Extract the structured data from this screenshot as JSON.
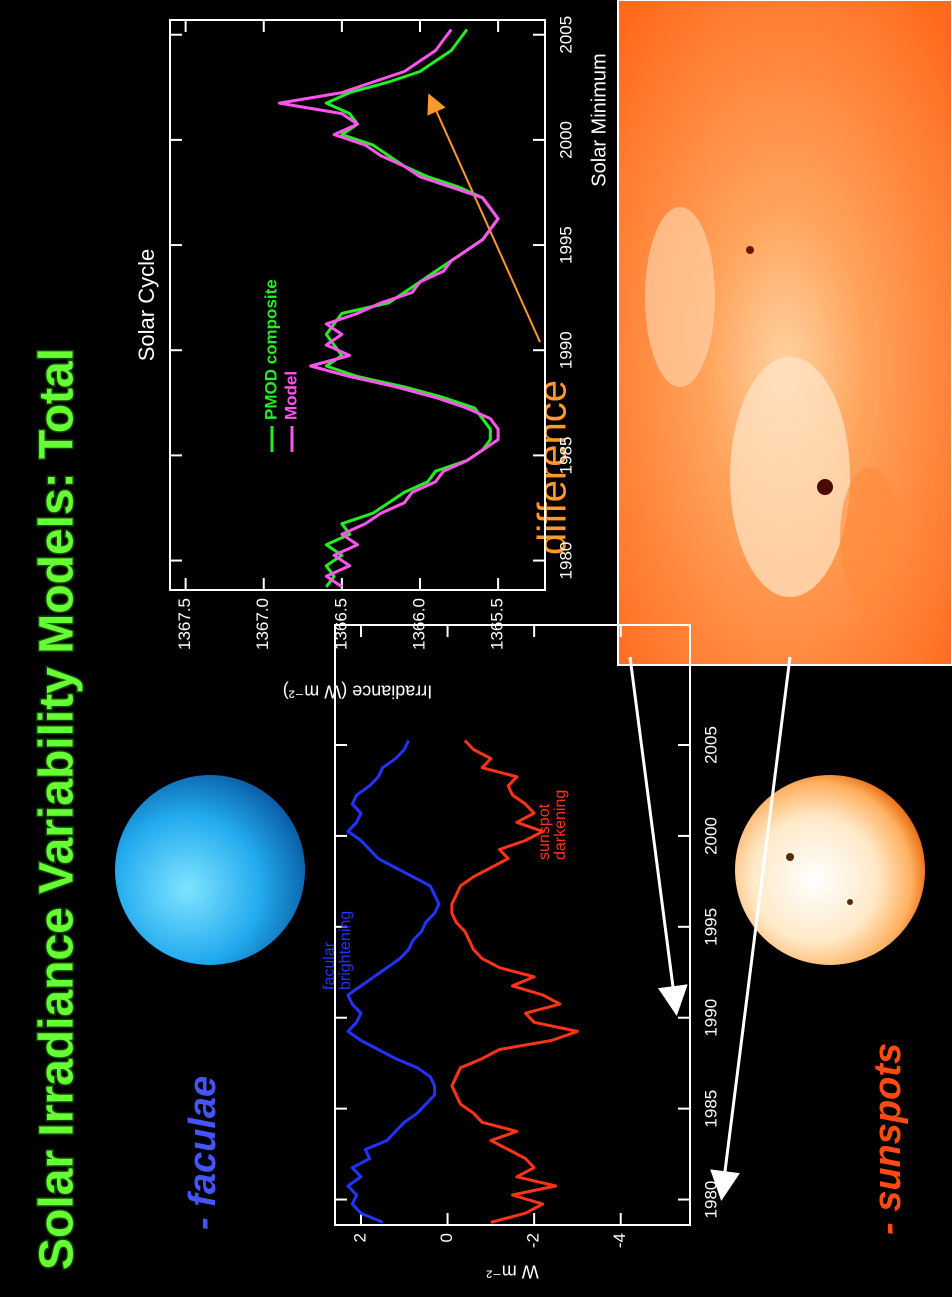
{
  "slide": {
    "title": "Solar Irradiance Variability Models: Total",
    "faculae_label": "- faculae",
    "sunspots_label": "- sunspots",
    "difference_label": "difference",
    "solar_minimum_label": "Solar Minimum"
  },
  "chart_data": [
    {
      "type": "line",
      "y_label": "W m⁻²",
      "x": [
        1978.75,
        1979.25,
        1979.75,
        1980.25,
        1980.75,
        1981.25,
        1981.75,
        1982.25,
        1982.75,
        1983.25,
        1983.75,
        1984.25,
        1984.75,
        1985.25,
        1985.75,
        1986.25,
        1986.75,
        1987.25,
        1987.75,
        1988.25,
        1988.75,
        1989.25,
        1989.75,
        1990.25,
        1990.75,
        1991.25,
        1991.75,
        1992.25,
        1992.75,
        1993.25,
        1993.75,
        1994.25,
        1994.75,
        1995.25,
        1995.75,
        1996.25,
        1996.75,
        1997.25,
        1997.75,
        1998.25,
        1998.75,
        1999.25,
        1999.75,
        2000.25,
        2000.75,
        2001.25,
        2001.75,
        2002.25,
        2002.75,
        2003.25,
        2003.75,
        2004.25,
        2004.75,
        2005.25
      ],
      "series": [
        {
          "color": "#2233ff",
          "values": [
            1.5,
            2.0,
            2.2,
            2.1,
            2.3,
            2.0,
            2.2,
            1.8,
            1.9,
            1.4,
            1.2,
            1.0,
            0.7,
            0.5,
            0.3,
            0.3,
            0.4,
            0.7,
            1.2,
            1.6,
            2.0,
            2.3,
            2.1,
            2.0,
            2.2,
            2.3,
            2.0,
            1.7,
            1.4,
            1.1,
            0.9,
            0.8,
            0.6,
            0.5,
            0.3,
            0.2,
            0.3,
            0.4,
            0.8,
            1.2,
            1.6,
            1.8,
            2.0,
            2.3,
            2.1,
            2.0,
            2.2,
            2.1,
            1.8,
            1.6,
            1.5,
            1.2,
            1.0,
            0.9
          ]
        },
        {
          "color": "#ff3318",
          "values": [
            -1.0,
            -1.8,
            -2.2,
            -1.5,
            -2.5,
            -1.6,
            -2.0,
            -1.8,
            -1.4,
            -1.0,
            -1.6,
            -0.8,
            -0.6,
            -0.3,
            -0.2,
            -0.1,
            -0.2,
            -0.3,
            -0.8,
            -1.2,
            -2.4,
            -3.0,
            -2.0,
            -1.8,
            -2.6,
            -2.2,
            -1.5,
            -2.0,
            -1.2,
            -0.8,
            -0.6,
            -0.5,
            -0.4,
            -0.2,
            -0.1,
            -0.1,
            -0.2,
            -0.3,
            -0.6,
            -1.0,
            -1.4,
            -1.2,
            -1.8,
            -2.2,
            -1.6,
            -2.0,
            -1.8,
            -1.5,
            -1.4,
            -1.6,
            -0.8,
            -1.0,
            -0.6,
            -0.4
          ]
        }
      ],
      "annotations": [
        [
          "facular",
          "brightening"
        ],
        [
          "sunspot",
          "darkening"
        ]
      ],
      "xlim": [
        1978.6,
        2011.6
      ],
      "ylim": [
        -5.6,
        2.6
      ],
      "xticks": [
        1980,
        1985,
        1990,
        1995,
        2000,
        2005
      ],
      "yticks": [
        2,
        0,
        -2,
        -4
      ]
    },
    {
      "type": "line",
      "title": "Solar Cycle",
      "y_label": "Irradiance (W m⁻²)",
      "x": [
        1978.75,
        1979.25,
        1979.75,
        1980.25,
        1980.75,
        1981.25,
        1981.75,
        1982.25,
        1982.75,
        1983.25,
        1983.75,
        1984.25,
        1984.75,
        1985.25,
        1985.75,
        1986.25,
        1986.75,
        1987.25,
        1987.75,
        1988.25,
        1988.75,
        1989.25,
        1989.75,
        1990.25,
        1990.75,
        1991.25,
        1991.75,
        1992.25,
        1992.75,
        1993.25,
        1993.75,
        1994.25,
        1994.75,
        1995.25,
        1995.75,
        1996.25,
        1996.75,
        1997.25,
        1997.75,
        1998.25,
        1998.75,
        1999.25,
        1999.75,
        2000.25,
        2000.75,
        2001.25,
        2001.75,
        2002.25,
        2002.75,
        2003.25,
        2003.75,
        2004.25,
        2004.75,
        2005.25
      ],
      "series": [
        {
          "name": "PMOD composite",
          "color": "#22ee22",
          "values": [
            1366.6,
            1366.55,
            1366.6,
            1366.5,
            1366.6,
            1366.45,
            1366.5,
            1366.3,
            1366.2,
            1366.1,
            1365.95,
            1365.9,
            1365.7,
            1365.6,
            1365.55,
            1365.55,
            1365.6,
            1365.65,
            1365.85,
            1366.1,
            1366.4,
            1366.6,
            1366.5,
            1366.55,
            1366.6,
            1366.55,
            1366.5,
            1366.2,
            1366.1,
            1366.0,
            1365.9,
            1365.8,
            1365.7,
            1365.6,
            1365.55,
            1365.5,
            1365.55,
            1365.6,
            1365.75,
            1365.95,
            1366.1,
            1366.2,
            1366.3,
            1366.5,
            1366.4,
            1366.45,
            1366.6,
            1366.45,
            1366.2,
            1366.0,
            1365.9,
            1365.8,
            1365.75,
            1365.7
          ]
        },
        {
          "name": "Model",
          "color": "#ff55ee",
          "values": [
            1366.5,
            1366.6,
            1366.45,
            1366.55,
            1366.4,
            1366.5,
            1366.35,
            1366.25,
            1366.1,
            1366.05,
            1365.9,
            1365.85,
            1365.7,
            1365.6,
            1365.5,
            1365.5,
            1365.55,
            1365.7,
            1365.9,
            1366.15,
            1366.45,
            1366.7,
            1366.45,
            1366.6,
            1366.5,
            1366.6,
            1366.4,
            1366.25,
            1366.05,
            1366.0,
            1365.85,
            1365.8,
            1365.7,
            1365.6,
            1365.55,
            1365.5,
            1365.55,
            1365.6,
            1365.8,
            1366.0,
            1366.1,
            1366.25,
            1366.35,
            1366.55,
            1366.4,
            1366.5,
            1366.9,
            1366.5,
            1366.3,
            1366.1,
            1366.0,
            1365.9,
            1365.85,
            1365.8
          ]
        }
      ],
      "legend": true,
      "xlim": [
        1978.6,
        2005.7
      ],
      "ylim": [
        1365.2,
        1367.6
      ],
      "xticks": [
        1980,
        1985,
        1990,
        1995,
        2000,
        2005
      ],
      "yticks": [
        1367.5,
        {
          "value": 1367,
          "label": "1367.0"
        },
        1366.5,
        {
          "value": 1366,
          "label": "1366.0"
        },
        1365.5
      ]
    }
  ]
}
